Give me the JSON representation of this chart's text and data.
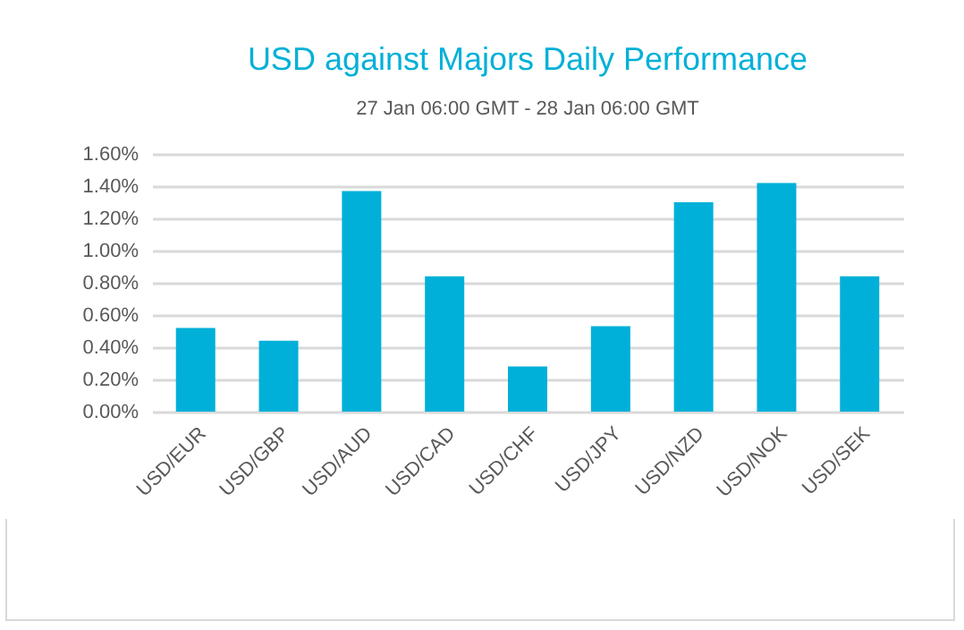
{
  "chart_data": {
    "type": "bar",
    "title": "USD against Majors Daily Performance",
    "subtitle": "27 Jan 06:00 GMT -  28 Jan  06:00 GMT",
    "categories": [
      "USD/EUR",
      "USD/GBP",
      "USD/AUD",
      "USD/CAD",
      "USD/CHF",
      "USD/JPY",
      "USD/NZD",
      "USD/NOK",
      "USD/SEK"
    ],
    "values": [
      0.52,
      0.44,
      1.37,
      0.84,
      0.28,
      0.53,
      1.3,
      1.42,
      0.84
    ],
    "color": "#00b0d8",
    "ylim": [
      0,
      1.6
    ],
    "yticks": [
      {
        "value": 0,
        "label": "0.00%"
      },
      {
        "value": 0.2,
        "label": "0.20%"
      },
      {
        "value": 0.4,
        "label": "0.40%"
      },
      {
        "value": 0.6,
        "label": "0.60%"
      },
      {
        "value": 0.8,
        "label": "0.80%"
      },
      {
        "value": 1.0,
        "label": "1.00%"
      },
      {
        "value": 1.2,
        "label": "1.20%"
      },
      {
        "value": 1.4,
        "label": "1.40%"
      },
      {
        "value": 1.6,
        "label": "1.60%"
      }
    ],
    "grid": "y"
  }
}
